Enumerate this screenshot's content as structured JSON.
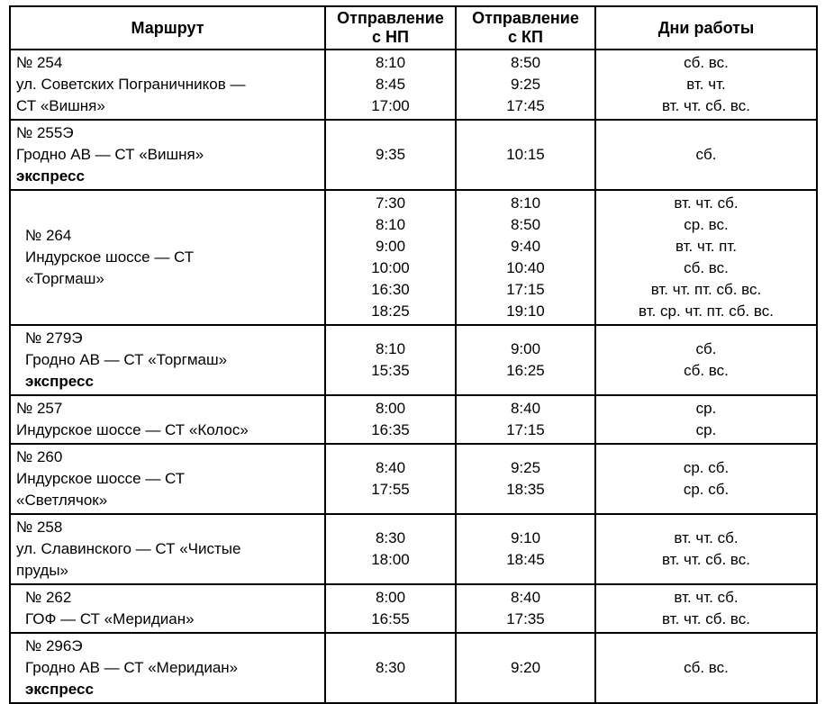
{
  "table": {
    "headers": [
      {
        "lines": [
          "Маршрут"
        ]
      },
      {
        "lines": [
          "Отправление",
          "с НП"
        ]
      },
      {
        "lines": [
          "Отправление",
          "с КП"
        ]
      },
      {
        "lines": [
          "Дни работы"
        ]
      }
    ],
    "rows": [
      {
        "route": [
          "№ 254",
          "ул. Советских Пограничников —",
          "СТ «Вишня»"
        ],
        "indent": false,
        "dep_np": [
          "8:10",
          "8:45",
          "17:00"
        ],
        "dep_kp": [
          "8:50",
          "9:25",
          "17:45"
        ],
        "days": [
          "сб. вс.",
          "вт. чт.",
          "вт. чт. сб. вс."
        ]
      },
      {
        "route": [
          "№ 255Э",
          "Гродно АВ — СТ «Вишня»"
        ],
        "express_label": "экспресс",
        "indent": false,
        "dep_np": [
          "9:35"
        ],
        "dep_kp": [
          "10:15"
        ],
        "days": [
          "сб."
        ]
      },
      {
        "route": [
          "№ 264",
          "Индурское шоссе — СТ",
          "«Торгмаш»"
        ],
        "indent": true,
        "dep_np": [
          "7:30",
          "8:10",
          "9:00",
          "10:00",
          "16:30",
          "18:25"
        ],
        "dep_kp": [
          "8:10",
          "8:50",
          "9:40",
          "10:40",
          "17:15",
          "19:10"
        ],
        "days": [
          "вт. чт. сб.",
          "ср. вс.",
          "вт. чт. пт.",
          "сб. вс.",
          "вт. чт. пт. сб. вс.",
          "вт. ср. чт. пт. сб. вс."
        ]
      },
      {
        "route": [
          "№ 279Э",
          "Гродно АВ — СТ «Торгмаш»"
        ],
        "express_label": "экспресс",
        "indent": true,
        "dep_np": [
          "8:10",
          "15:35"
        ],
        "dep_kp": [
          "9:00",
          "16:25"
        ],
        "days": [
          "сб.",
          "сб. вс."
        ]
      },
      {
        "route": [
          "№ 257",
          "Индурское шоссе — СТ «Колос»"
        ],
        "indent": false,
        "dep_np": [
          "8:00",
          "16:35"
        ],
        "dep_kp": [
          "8:40",
          "17:15"
        ],
        "days": [
          "ср.",
          "ср."
        ]
      },
      {
        "route": [
          "№ 260",
          "Индурское шоссе — СТ",
          "«Светлячок»"
        ],
        "indent": false,
        "dep_np": [
          "8:40",
          "17:55"
        ],
        "dep_kp": [
          "9:25",
          "18:35"
        ],
        "days": [
          "ср. сб.",
          "ср. сб."
        ]
      },
      {
        "route": [
          "№ 258",
          "ул. Славинского — СТ «Чистые",
          "пруды»"
        ],
        "indent": false,
        "dep_np": [
          "8:30",
          "18:00"
        ],
        "dep_kp": [
          "9:10",
          "18:45"
        ],
        "days": [
          "вт. чт. сб.",
          "вт. чт. сб. вс."
        ]
      },
      {
        "route": [
          "№ 262",
          "ГОФ — СТ «Меридиан»"
        ],
        "indent": true,
        "dep_np": [
          "8:00",
          "16:55"
        ],
        "dep_kp": [
          "8:40",
          "17:35"
        ],
        "days": [
          "вт. чт. сб.",
          "вт. чт. сб. вс."
        ]
      },
      {
        "route": [
          "№ 296Э",
          "Гродно АВ — СТ «Меридиан»"
        ],
        "express_label": "экспресс",
        "indent": true,
        "dep_np": [
          "8:30"
        ],
        "dep_kp": [
          "9:20"
        ],
        "days": [
          "сб. вс."
        ]
      }
    ]
  }
}
